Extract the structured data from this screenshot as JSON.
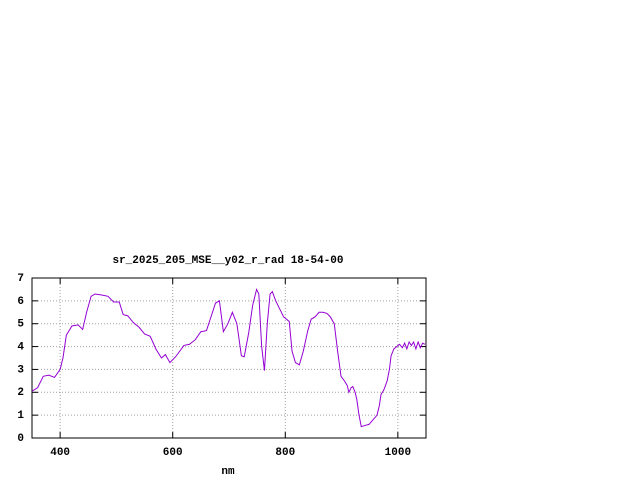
{
  "chart_data": {
    "type": "line",
    "title": "sr_2025_205_MSE__y02_r_rad 18-54-00",
    "x_label": "nm",
    "x": [
      350,
      360,
      370,
      380,
      390,
      400,
      405,
      411,
      421,
      432,
      440,
      447,
      455,
      462,
      475,
      485,
      495,
      505,
      512,
      520,
      530,
      540,
      550,
      560,
      570,
      580,
      587,
      595,
      605,
      620,
      630,
      640,
      650,
      660,
      668,
      676,
      683,
      690,
      698,
      706,
      714,
      722,
      727,
      735,
      742,
      749,
      753,
      758,
      763,
      768,
      773,
      777,
      783,
      789,
      797,
      807,
      812,
      818,
      825,
      832,
      840,
      846,
      853,
      860,
      867,
      874,
      880,
      887,
      893,
      899,
      905,
      910,
      913,
      917,
      920,
      924,
      927,
      931,
      935,
      942,
      949,
      956,
      963,
      967,
      970,
      975,
      981,
      985,
      988,
      993,
      998,
      1003,
      1008,
      1012,
      1016,
      1020,
      1024,
      1028,
      1032,
      1036,
      1040,
      1044,
      1048
    ],
    "series": [
      {
        "name": "sr_2025_205_MSE__y02_r_rad",
        "color": "#9400d3",
        "values": [
          2.05,
          2.2,
          2.7,
          2.75,
          2.65,
          3.0,
          3.5,
          4.5,
          4.9,
          4.95,
          4.75,
          5.5,
          6.2,
          6.3,
          6.25,
          6.2,
          5.95,
          5.95,
          5.4,
          5.35,
          5.05,
          4.85,
          4.55,
          4.45,
          3.9,
          3.5,
          3.65,
          3.3,
          3.55,
          4.05,
          4.1,
          4.3,
          4.65,
          4.7,
          5.3,
          5.9,
          6.0,
          4.65,
          5.0,
          5.5,
          5.0,
          3.6,
          3.55,
          4.6,
          5.8,
          6.5,
          6.3,
          4.0,
          2.95,
          5.0,
          6.3,
          6.4,
          6.0,
          5.7,
          5.3,
          5.1,
          3.8,
          3.3,
          3.2,
          3.8,
          4.7,
          5.2,
          5.3,
          5.5,
          5.5,
          5.45,
          5.3,
          5.0,
          3.8,
          2.7,
          2.5,
          2.3,
          2.0,
          2.2,
          2.25,
          2.0,
          1.7,
          1.0,
          0.5,
          0.55,
          0.6,
          0.8,
          1.0,
          1.4,
          1.9,
          2.1,
          2.5,
          3.0,
          3.6,
          3.9,
          4.0,
          4.1,
          3.95,
          4.15,
          3.9,
          4.2,
          4.05,
          4.2,
          3.9,
          4.2,
          3.95,
          4.15,
          4.1
        ]
      }
    ],
    "xlim": [
      350,
      1050
    ],
    "ylim": [
      0,
      7
    ],
    "xticks": [
      400,
      600,
      800,
      1000
    ],
    "yticks": [
      0,
      1,
      2,
      3,
      4,
      5,
      6,
      7
    ],
    "grid": true
  }
}
